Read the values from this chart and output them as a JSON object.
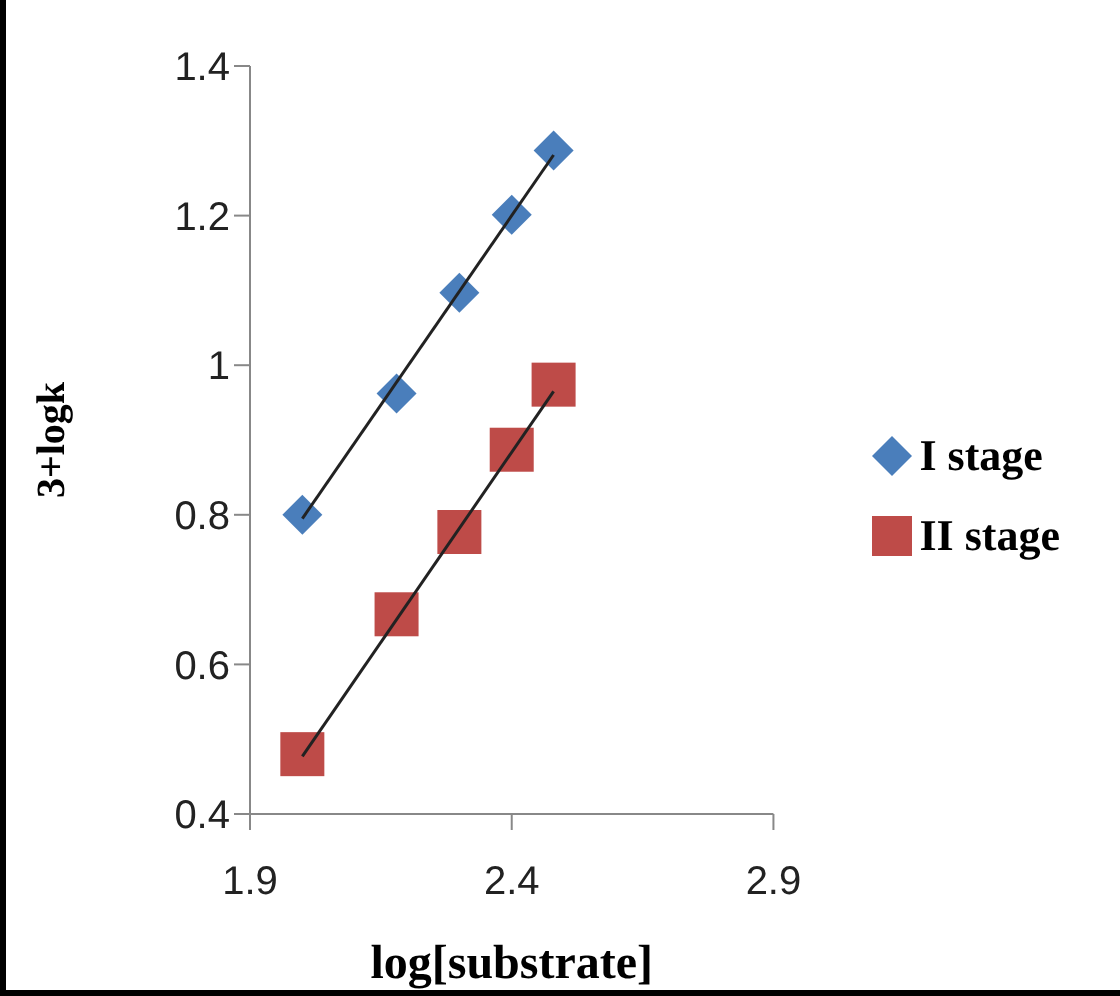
{
  "chart_data": {
    "type": "scatter",
    "xlabel": "log[substrate]",
    "ylabel": "3+logk",
    "xlim": [
      1.9,
      2.9
    ],
    "xticks": [
      1.9,
      2.4,
      2.9
    ],
    "ylim": [
      0.4,
      1.4
    ],
    "yticks": [
      0.4,
      0.6,
      0.8,
      1,
      1.2,
      1.4
    ],
    "grid": false,
    "legend": "right",
    "series": [
      {
        "name": "I stage",
        "color": "#4a7ebb",
        "marker": "diamond",
        "x": [
          2.0,
          2.18,
          2.3,
          2.4,
          2.48
        ],
        "values": [
          0.8,
          0.962,
          1.097,
          1.201,
          1.287
        ]
      },
      {
        "name": "II stage",
        "color": "#be4b48",
        "marker": "square",
        "x": [
          2.0,
          2.18,
          2.3,
          2.4,
          2.48
        ],
        "values": [
          0.48,
          0.667,
          0.777,
          0.887,
          0.974
        ]
      },
      {
        "type": "line",
        "color": "#222222",
        "marker": "none",
        "x": [
          2.0,
          2.48
        ],
        "values": [
          0.795,
          1.281
        ]
      },
      {
        "type": "line",
        "color": "#222222",
        "marker": "none",
        "x": [
          2.0,
          2.48
        ],
        "values": [
          0.477,
          0.965
        ]
      }
    ]
  }
}
